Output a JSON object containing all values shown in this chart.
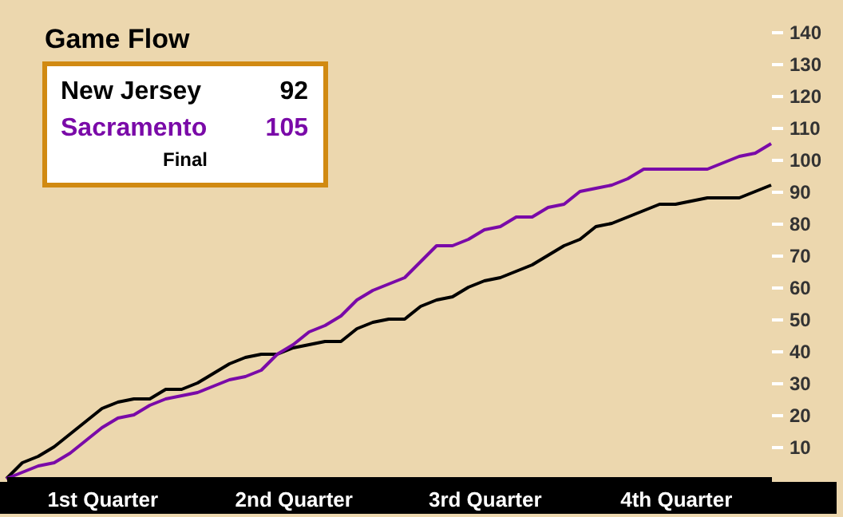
{
  "chart_data": {
    "type": "line",
    "title": "Game Flow",
    "categories": [
      null,
      null,
      null,
      null,
      null,
      null,
      "1st Quarter",
      null,
      null,
      null,
      null,
      null,
      null,
      null,
      null,
      null,
      null,
      null,
      "2nd Quarter",
      null,
      null,
      null,
      null,
      null,
      null,
      null,
      null,
      null,
      null,
      null,
      "3rd Quarter",
      null,
      null,
      null,
      null,
      null,
      null,
      null,
      null,
      null,
      null,
      null,
      "4th Quarter",
      null,
      null,
      null,
      null,
      null,
      null
    ],
    "ylim": [
      0,
      150
    ],
    "yticks": [
      10,
      20,
      30,
      40,
      50,
      60,
      70,
      80,
      90,
      100,
      110,
      120,
      130,
      140
    ],
    "grid": false,
    "legend": "top left",
    "marker": "none",
    "line_style": "solid",
    "series": [
      {
        "name": "New Jersey",
        "color": "#000000",
        "values": [
          0,
          5,
          7,
          10,
          14,
          18,
          22,
          24,
          25,
          25,
          28,
          28,
          30,
          33,
          36,
          38,
          39,
          39,
          41,
          42,
          43,
          43,
          47,
          49,
          50,
          50,
          54,
          56,
          57,
          60,
          62,
          63,
          65,
          67,
          70,
          73,
          75,
          79,
          80,
          82,
          84,
          86,
          86,
          87,
          88,
          88,
          88,
          90,
          92
        ]
      },
      {
        "name": "Sacramento",
        "color": "#7a0aa8",
        "values": [
          0,
          2,
          4,
          5,
          8,
          12,
          16,
          19,
          20,
          23,
          25,
          26,
          27,
          29,
          31,
          32,
          34,
          39,
          42,
          46,
          48,
          51,
          56,
          59,
          61,
          63,
          68,
          73,
          73,
          75,
          78,
          79,
          82,
          82,
          85,
          86,
          90,
          91,
          92,
          94,
          97,
          97,
          97,
          97,
          97,
          99,
          101,
          102,
          105
        ]
      }
    ],
    "annotations": [
      "92",
      "105",
      "Final"
    ]
  }
}
